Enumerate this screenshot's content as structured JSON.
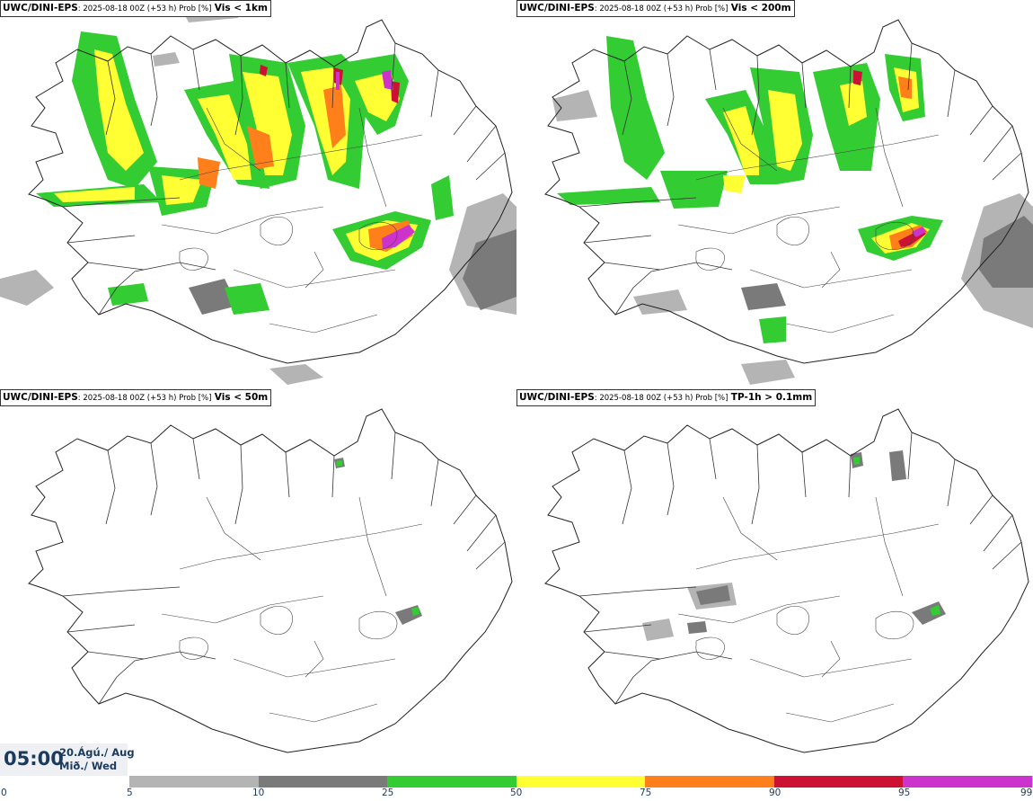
{
  "panels": [
    {
      "model": "UWC/DINI-EPS",
      "meta": ": 2025-08-18 00Z (+53 h) Prob [%]",
      "variable": "Vis < 1km"
    },
    {
      "model": "UWC/DINI-EPS",
      "meta": ": 2025-08-18 00Z (+53 h) Prob [%]",
      "variable": "Vis < 200m"
    },
    {
      "model": "UWC/DINI-EPS",
      "meta": ": 2025-08-18 00Z (+53 h) Prob [%]",
      "variable": "Vis < 50m"
    },
    {
      "model": "UWC/DINI-EPS",
      "meta": ": 2025-08-18 00Z (+53 h) Prob [%]",
      "variable": "TP-1h > 0.1mm"
    }
  ],
  "valid_time": {
    "time": "05:00",
    "date_line1": "20.Ágú./ Aug",
    "date_line2": "Mið./ Wed"
  },
  "colorbar": {
    "ticks": [
      "0",
      "5",
      "10",
      "25",
      "50",
      "75",
      "90",
      "95",
      "99"
    ],
    "colors": [
      "#b4b4b4",
      "#7a7a7a",
      "#33cc33",
      "#ffff33",
      "#ff7f1a",
      "#cc1133",
      "#cc33cc",
      "#f2b3f2"
    ]
  }
}
